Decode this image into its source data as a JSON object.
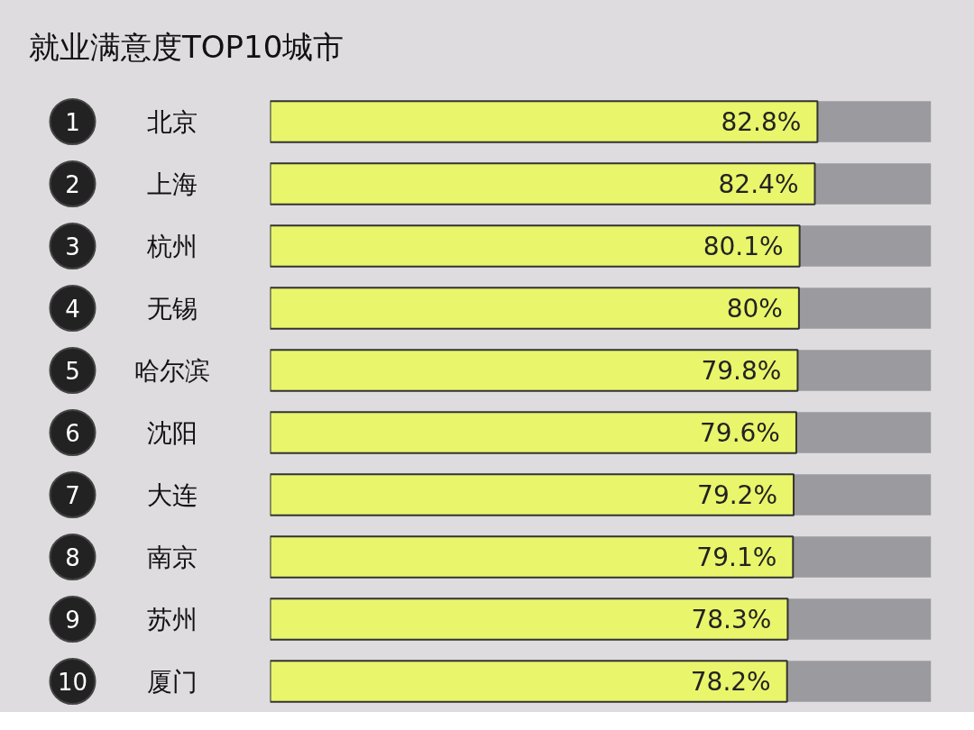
{
  "chart_data": {
    "type": "bar",
    "orientation": "horizontal",
    "title": "就业满意度TOP10城市",
    "categories": [
      "北京",
      "上海",
      "杭州",
      "无锡",
      "哈尔滨",
      "沈阳",
      "大连",
      "南京",
      "苏州",
      "厦门"
    ],
    "values": [
      82.8,
      82.4,
      80.1,
      80,
      79.8,
      79.6,
      79.2,
      79.1,
      78.3,
      78.2
    ],
    "value_labels": [
      "82.8%",
      "82.4%",
      "80.1%",
      "80%",
      "79.8%",
      "79.6%",
      "79.2%",
      "79.1%",
      "78.3%",
      "78.2%"
    ],
    "color": "#e9f56b",
    "annotations": [
      "1",
      "2",
      "3",
      "4",
      "5",
      "6",
      "7",
      "8",
      "9",
      "10"
    ],
    "xlim": [
      0,
      100
    ],
    "tick_labels": false,
    "grid": false
  }
}
